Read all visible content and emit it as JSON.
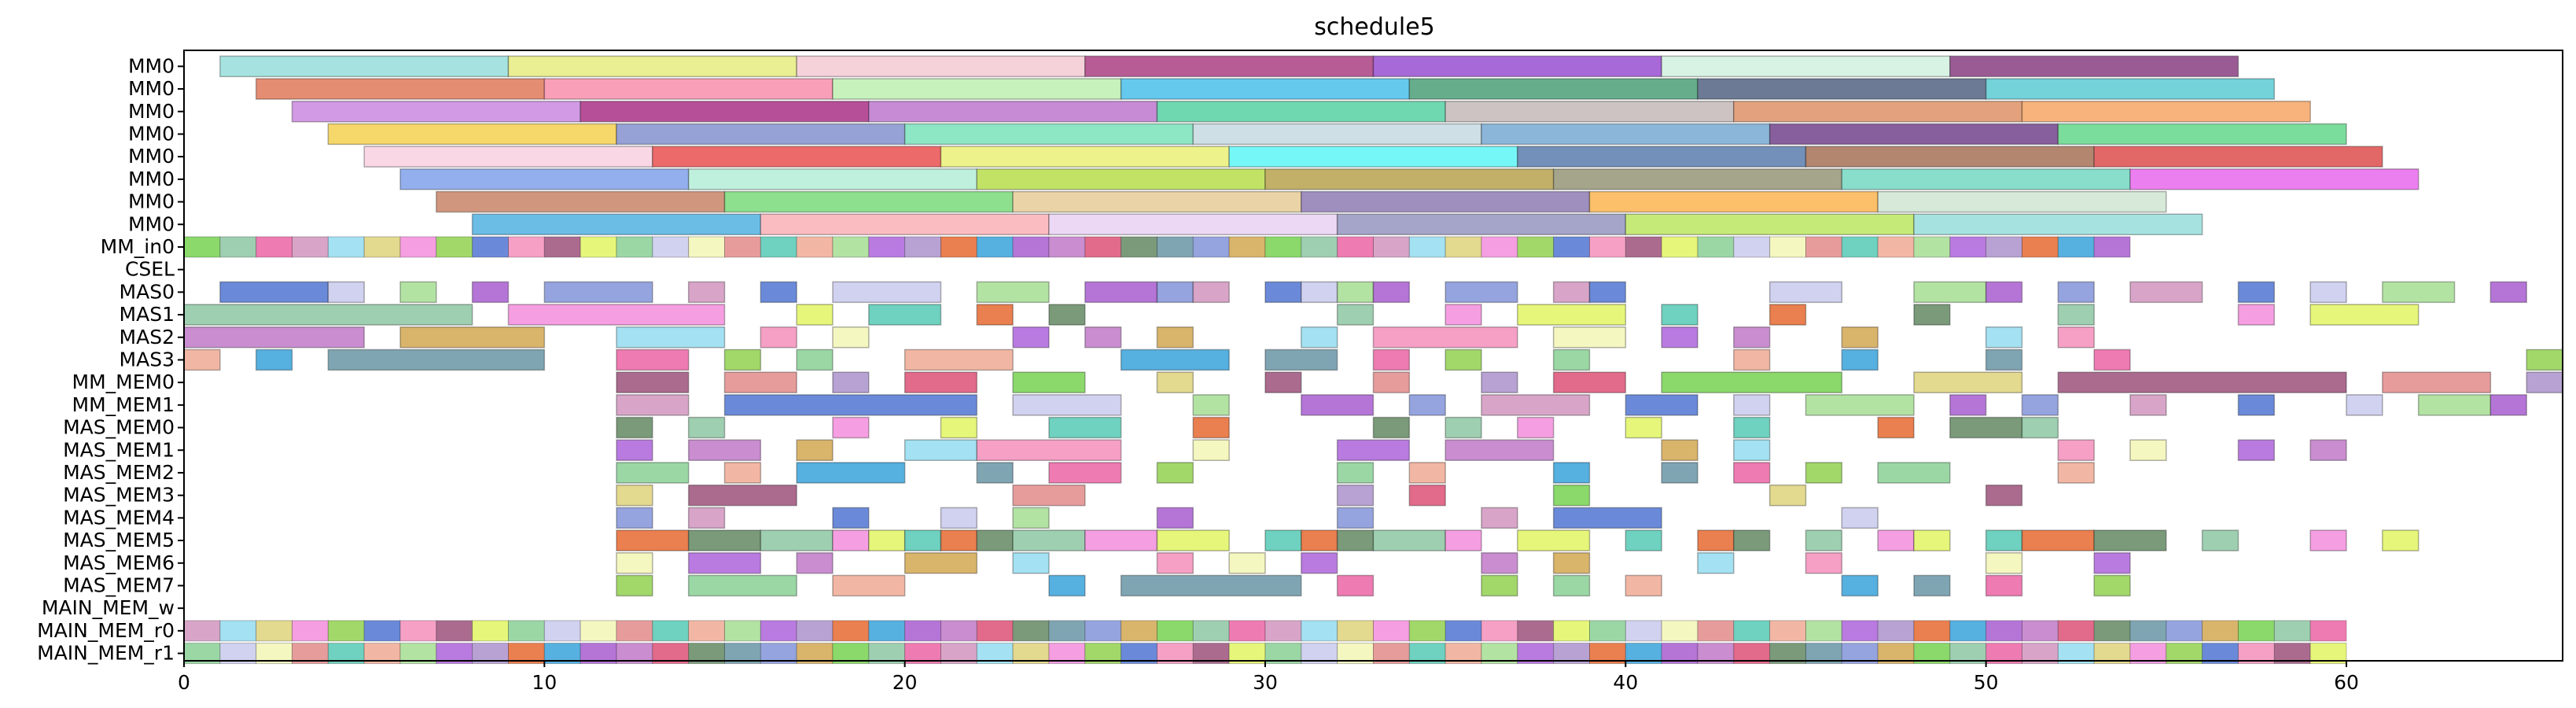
{
  "chart_data": {
    "type": "gantt",
    "title": "schedule5",
    "xlim": [
      0,
      66
    ],
    "x_ticks": [
      0,
      10,
      20,
      30,
      40,
      50,
      60
    ],
    "rows": [
      "MM0",
      "MM0",
      "MM0",
      "MM0",
      "MM0",
      "MM0",
      "MM0",
      "MM0",
      "MM_in0",
      "CSEL",
      "MAS0",
      "MAS1",
      "MAS2",
      "MAS3",
      "MM_MEM0",
      "MM_MEM1",
      "MAS_MEM0",
      "MAS_MEM1",
      "MAS_MEM2",
      "MAS_MEM3",
      "MAS_MEM4",
      "MAS_MEM5",
      "MAS_MEM6",
      "MAS_MEM7",
      "MAIN_MEM_w",
      "MAIN_MEM_r0",
      "MAIN_MEM_r1"
    ],
    "tasks": [
      [
        [
          1,
          8
        ],
        [
          9,
          8
        ],
        [
          17,
          8
        ],
        [
          25,
          8
        ],
        [
          33,
          8
        ],
        [
          41,
          8
        ],
        [
          49,
          8
        ]
      ],
      [
        [
          2,
          8
        ],
        [
          10,
          8
        ],
        [
          18,
          8
        ],
        [
          26,
          8
        ],
        [
          34,
          8
        ],
        [
          42,
          8
        ],
        [
          50,
          8
        ]
      ],
      [
        [
          3,
          8
        ],
        [
          11,
          8
        ],
        [
          19,
          8
        ],
        [
          27,
          8
        ],
        [
          35,
          8
        ],
        [
          43,
          8
        ],
        [
          51,
          8
        ]
      ],
      [
        [
          4,
          8
        ],
        [
          12,
          8
        ],
        [
          20,
          8
        ],
        [
          28,
          8
        ],
        [
          36,
          8
        ],
        [
          44,
          8
        ],
        [
          52,
          8
        ]
      ],
      [
        [
          5,
          8
        ],
        [
          13,
          8
        ],
        [
          21,
          8
        ],
        [
          29,
          8
        ],
        [
          37,
          8
        ],
        [
          45,
          8
        ],
        [
          53,
          8
        ]
      ],
      [
        [
          6,
          8
        ],
        [
          14,
          8
        ],
        [
          22,
          8
        ],
        [
          30,
          8
        ],
        [
          38,
          8
        ],
        [
          46,
          8
        ],
        [
          54,
          8
        ]
      ],
      [
        [
          7,
          8
        ],
        [
          15,
          8
        ],
        [
          23,
          8
        ],
        [
          31,
          8
        ],
        [
          39,
          8
        ],
        [
          47,
          8
        ]
      ],
      [
        [
          8,
          8
        ],
        [
          16,
          8
        ],
        [
          24,
          8
        ],
        [
          32,
          8
        ],
        [
          40,
          8
        ],
        [
          48,
          8
        ]
      ],
      [
        [
          0,
          54
        ]
      ],
      [],
      [
        [
          1,
          3
        ],
        [
          4,
          1
        ],
        [
          6,
          1
        ],
        [
          8,
          1
        ],
        [
          10,
          3
        ],
        [
          14,
          1
        ],
        [
          16,
          1
        ],
        [
          18,
          3
        ],
        [
          22,
          2
        ],
        [
          25,
          2
        ],
        [
          27,
          1
        ],
        [
          28,
          1
        ],
        [
          30,
          1
        ],
        [
          31,
          1
        ],
        [
          32,
          1
        ],
        [
          33,
          1
        ],
        [
          35,
          2
        ],
        [
          38,
          1
        ],
        [
          39,
          1
        ],
        [
          44,
          2
        ],
        [
          48,
          2
        ],
        [
          50,
          1
        ],
        [
          52,
          1
        ],
        [
          54,
          2
        ],
        [
          57,
          1
        ],
        [
          59,
          1
        ],
        [
          61,
          2
        ],
        [
          64,
          1
        ]
      ],
      [
        [
          0,
          8
        ],
        [
          9,
          6
        ],
        [
          17,
          1
        ],
        [
          19,
          2
        ],
        [
          22,
          1
        ],
        [
          24,
          1
        ],
        [
          32,
          1
        ],
        [
          35,
          1
        ],
        [
          37,
          3
        ],
        [
          41,
          1
        ],
        [
          44,
          1
        ],
        [
          48,
          1
        ],
        [
          52,
          1
        ],
        [
          57,
          1
        ],
        [
          59,
          3
        ]
      ],
      [
        [
          0,
          5
        ],
        [
          6,
          4
        ],
        [
          12,
          3
        ],
        [
          16,
          1
        ],
        [
          18,
          1
        ],
        [
          23,
          1
        ],
        [
          25,
          1
        ],
        [
          27,
          1
        ],
        [
          31,
          1
        ],
        [
          33,
          4
        ],
        [
          38,
          2
        ],
        [
          41,
          1
        ],
        [
          43,
          1
        ],
        [
          46,
          1
        ],
        [
          50,
          1
        ],
        [
          52,
          1
        ]
      ],
      [
        [
          0,
          1
        ],
        [
          2,
          1
        ],
        [
          4,
          6
        ],
        [
          12,
          2
        ],
        [
          15,
          1
        ],
        [
          17,
          1
        ],
        [
          20,
          3
        ],
        [
          26,
          3
        ],
        [
          30,
          2
        ],
        [
          33,
          1
        ],
        [
          35,
          1
        ],
        [
          38,
          1
        ],
        [
          43,
          1
        ],
        [
          46,
          1
        ],
        [
          50,
          1
        ],
        [
          53,
          1
        ],
        [
          65,
          1
        ]
      ],
      [
        [
          12,
          2
        ],
        [
          15,
          2
        ],
        [
          18,
          1
        ],
        [
          20,
          2
        ],
        [
          23,
          2
        ],
        [
          27,
          1
        ],
        [
          30,
          1
        ],
        [
          33,
          1
        ],
        [
          36,
          1
        ],
        [
          38,
          2
        ],
        [
          41,
          5
        ],
        [
          48,
          3
        ],
        [
          52,
          8
        ],
        [
          61,
          3
        ],
        [
          65,
          1
        ]
      ],
      [
        [
          12,
          2
        ],
        [
          15,
          7
        ],
        [
          23,
          3
        ],
        [
          28,
          1
        ],
        [
          31,
          2
        ],
        [
          34,
          1
        ],
        [
          36,
          3
        ],
        [
          40,
          2
        ],
        [
          43,
          1
        ],
        [
          45,
          3
        ],
        [
          49,
          1
        ],
        [
          51,
          1
        ],
        [
          54,
          1
        ],
        [
          57,
          1
        ],
        [
          60,
          1
        ],
        [
          62,
          2
        ],
        [
          64,
          1
        ]
      ],
      [
        [
          12,
          1
        ],
        [
          14,
          1
        ],
        [
          18,
          1
        ],
        [
          21,
          1
        ],
        [
          24,
          2
        ],
        [
          28,
          1
        ],
        [
          33,
          1
        ],
        [
          35,
          1
        ],
        [
          37,
          1
        ],
        [
          40,
          1
        ],
        [
          43,
          1
        ],
        [
          47,
          1
        ],
        [
          49,
          2
        ],
        [
          51,
          1
        ]
      ],
      [
        [
          12,
          1
        ],
        [
          14,
          2
        ],
        [
          17,
          1
        ],
        [
          20,
          2
        ],
        [
          22,
          4
        ],
        [
          28,
          1
        ],
        [
          32,
          2
        ],
        [
          35,
          3
        ],
        [
          41,
          1
        ],
        [
          43,
          1
        ],
        [
          52,
          1
        ],
        [
          54,
          1
        ],
        [
          57,
          1
        ],
        [
          59,
          1
        ]
      ],
      [
        [
          12,
          2
        ],
        [
          15,
          1
        ],
        [
          17,
          3
        ],
        [
          22,
          1
        ],
        [
          24,
          2
        ],
        [
          27,
          1
        ],
        [
          32,
          1
        ],
        [
          34,
          1
        ],
        [
          38,
          1
        ],
        [
          41,
          1
        ],
        [
          43,
          1
        ],
        [
          45,
          1
        ],
        [
          47,
          2
        ],
        [
          52,
          1
        ]
      ],
      [
        [
          12,
          1
        ],
        [
          14,
          3
        ],
        [
          23,
          2
        ],
        [
          32,
          1
        ],
        [
          34,
          1
        ],
        [
          38,
          1
        ],
        [
          44,
          1
        ],
        [
          50,
          1
        ]
      ],
      [
        [
          12,
          1
        ],
        [
          14,
          1
        ],
        [
          18,
          1
        ],
        [
          21,
          1
        ],
        [
          23,
          1
        ],
        [
          27,
          1
        ],
        [
          32,
          1
        ],
        [
          36,
          1
        ],
        [
          38,
          3
        ],
        [
          46,
          1
        ]
      ],
      [
        [
          12,
          2
        ],
        [
          14,
          2
        ],
        [
          16,
          2
        ],
        [
          18,
          1
        ],
        [
          19,
          1
        ],
        [
          20,
          1
        ],
        [
          21,
          1
        ],
        [
          22,
          1
        ],
        [
          23,
          2
        ],
        [
          25,
          2
        ],
        [
          27,
          2
        ],
        [
          30,
          1
        ],
        [
          31,
          1
        ],
        [
          32,
          1
        ],
        [
          33,
          2
        ],
        [
          35,
          1
        ],
        [
          37,
          2
        ],
        [
          40,
          1
        ],
        [
          42,
          1
        ],
        [
          43,
          1
        ],
        [
          45,
          1
        ],
        [
          47,
          1
        ],
        [
          48,
          1
        ],
        [
          50,
          1
        ],
        [
          51,
          2
        ],
        [
          53,
          2
        ],
        [
          56,
          1
        ],
        [
          59,
          1
        ],
        [
          61,
          1
        ]
      ],
      [
        [
          12,
          1
        ],
        [
          14,
          2
        ],
        [
          17,
          1
        ],
        [
          20,
          2
        ],
        [
          23,
          1
        ],
        [
          27,
          1
        ],
        [
          29,
          1
        ],
        [
          31,
          1
        ],
        [
          36,
          1
        ],
        [
          38,
          1
        ],
        [
          42,
          1
        ],
        [
          45,
          1
        ],
        [
          50,
          1
        ],
        [
          53,
          1
        ]
      ],
      [
        [
          12,
          1
        ],
        [
          14,
          3
        ],
        [
          18,
          2
        ],
        [
          24,
          1
        ],
        [
          26,
          5
        ],
        [
          32,
          1
        ],
        [
          36,
          1
        ],
        [
          38,
          1
        ],
        [
          40,
          1
        ],
        [
          46,
          1
        ],
        [
          48,
          1
        ],
        [
          50,
          1
        ],
        [
          53,
          1
        ]
      ],
      [],
      [
        [
          0,
          60
        ]
      ],
      [
        [
          0,
          60
        ]
      ]
    ]
  }
}
